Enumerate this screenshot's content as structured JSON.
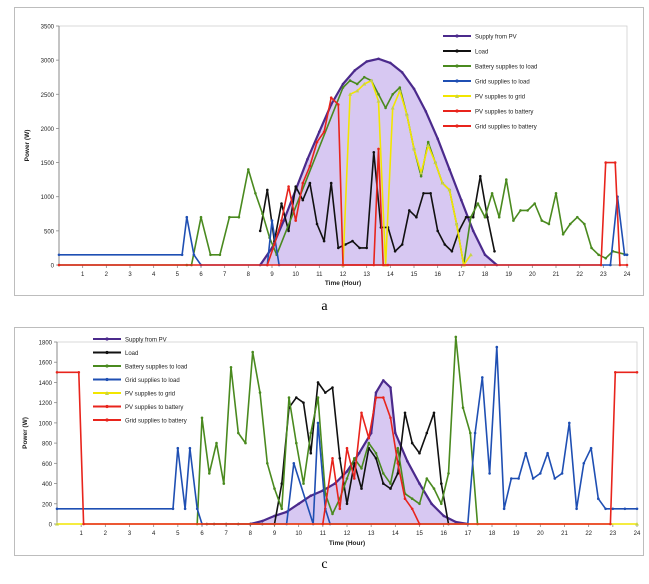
{
  "captions": {
    "a": "a",
    "c": "c"
  },
  "colors": {
    "pv": "#4b2a8c",
    "pv_fill": "#c9b6ee",
    "load": "#111111",
    "battery_to_load": "#4a8a1f",
    "grid_to_load": "#1f4fb3",
    "pv_to_grid": "#f2e600",
    "pv_to_battery": "#e8241c",
    "grid_to_battery": "#e8241c"
  },
  "chart_data": [
    {
      "type": "line",
      "xlabel": "Time (Hour)",
      "ylabel": "Power (W)",
      "ylim": [
        0,
        3500
      ],
      "yticks": [
        0,
        500,
        1000,
        1500,
        2000,
        2500,
        3000,
        3500
      ],
      "xlim": [
        0,
        24
      ],
      "xticks": [
        "1",
        "2",
        "3",
        "4",
        "5",
        "6",
        "7",
        "8",
        "9",
        "10",
        "11",
        "12",
        "13",
        "14",
        "15",
        "16",
        "17",
        "18",
        "19",
        "20",
        "21",
        "22",
        "23",
        "24"
      ],
      "legend_position": "top-right",
      "series": [
        {
          "name": "Supply from PV",
          "key": "pv",
          "fill": true,
          "x": [
            8.5,
            9,
            9.5,
            10,
            10.5,
            11,
            11.5,
            12,
            12.5,
            13,
            13.5,
            14,
            14.5,
            15,
            15.5,
            16,
            16.5,
            17,
            17.5,
            18,
            18.5
          ],
          "y": [
            0,
            250,
            650,
            1100,
            1550,
            1950,
            2350,
            2650,
            2850,
            2980,
            3020,
            2960,
            2820,
            2580,
            2250,
            1850,
            1400,
            950,
            500,
            150,
            0
          ]
        },
        {
          "name": "Load",
          "key": "load",
          "x": [
            8.5,
            8.8,
            9.1,
            9.4,
            9.7,
            10,
            10.3,
            10.6,
            10.9,
            11.2,
            11.5,
            11.8,
            12.1,
            12.4,
            12.7,
            13,
            13.3,
            13.6,
            13.9,
            14.2,
            14.5,
            14.8,
            15.1,
            15.4,
            15.7,
            16,
            16.3,
            16.6,
            16.9,
            17.2,
            17.5,
            17.8,
            18.1,
            18.4
          ],
          "y": [
            500,
            1100,
            350,
            900,
            500,
            1150,
            950,
            1200,
            600,
            350,
            1200,
            250,
            300,
            350,
            250,
            250,
            1650,
            550,
            550,
            200,
            300,
            800,
            700,
            1050,
            1050,
            500,
            300,
            200,
            500,
            700,
            700,
            1300,
            700,
            200
          ]
        },
        {
          "name": "Battery supplies to load",
          "key": "battery_to_load",
          "x": [
            0,
            5.4,
            5.6,
            6,
            6.4,
            6.8,
            7.2,
            7.6,
            8,
            8.3,
            8.6,
            8.9,
            9.2,
            12,
            12.3,
            12.6,
            12.9,
            13.2,
            13.5,
            13.8,
            14.1,
            14.4,
            14.7,
            15,
            15.3,
            15.6,
            15.9,
            16.2,
            16.5,
            16.8,
            17.1,
            17.4,
            17.7,
            18,
            18.3,
            18.6,
            18.9,
            19.2,
            19.5,
            19.8,
            20.1,
            20.4,
            20.7,
            21,
            21.3,
            21.6,
            21.9,
            22.2,
            22.5,
            22.8,
            23.1,
            23.4,
            24
          ],
          "y": [
            0,
            0,
            0,
            700,
            150,
            150,
            700,
            700,
            1400,
            1050,
            750,
            400,
            150,
            2600,
            2700,
            2650,
            2750,
            2700,
            2500,
            2300,
            2500,
            2600,
            2200,
            1700,
            1300,
            1800,
            1500,
            1200,
            1100,
            600,
            0,
            700,
            900,
            700,
            1050,
            700,
            1250,
            650,
            800,
            800,
            900,
            650,
            600,
            1050,
            450,
            600,
            700,
            600,
            250,
            150,
            100,
            200,
            150
          ]
        },
        {
          "name": "Grid supplies to load",
          "key": "grid_to_load",
          "x": [
            0,
            5.2,
            5.4,
            5.7,
            6,
            8.8,
            9,
            9.3,
            23.3,
            23.6,
            23.9,
            24
          ],
          "y": [
            150,
            150,
            700,
            150,
            0,
            0,
            650,
            0,
            0,
            1000,
            150,
            150
          ]
        },
        {
          "name": "PV supplies to grid",
          "key": "pv_to_grid",
          "x": [
            12,
            12.3,
            12.6,
            12.9,
            13.2,
            13.5,
            13.8,
            14.1,
            14.4,
            14.7,
            15,
            15.3,
            15.6,
            15.9,
            16.2,
            16.5,
            16.8,
            17.1,
            17.4
          ],
          "y": [
            0,
            2500,
            2550,
            2650,
            2700,
            2400,
            0,
            2300,
            2550,
            2200,
            1700,
            1350,
            1750,
            1500,
            1200,
            1100,
            600,
            0,
            150
          ]
        },
        {
          "name": "PV supplies to battery",
          "key": "pv_to_battery",
          "x": [
            8.8,
            9.1,
            9.4,
            9.7,
            10,
            10.3,
            10.6,
            10.9,
            11.2,
            11.5,
            11.8,
            12,
            13.3,
            13.5,
            13.7,
            13.9
          ],
          "y": [
            0,
            300,
            650,
            1150,
            650,
            1200,
            1450,
            1800,
            1950,
            2450,
            2350,
            0,
            0,
            1700,
            0,
            0
          ]
        },
        {
          "name": "Grid supplies to battery",
          "key": "grid_to_battery",
          "x": [
            0,
            22.9,
            23.1,
            23.5,
            23.7,
            24
          ],
          "y": [
            0,
            0,
            1500,
            1500,
            0,
            0
          ]
        }
      ]
    },
    {
      "type": "line",
      "xlabel": "Time (Hour)",
      "ylabel": "Power (W)",
      "ylim": [
        0,
        1800
      ],
      "yticks": [
        0,
        200,
        400,
        600,
        800,
        1000,
        1200,
        1400,
        1600,
        1800
      ],
      "xlim": [
        0,
        24
      ],
      "xticks": [
        "1",
        "2",
        "3",
        "4",
        "5",
        "6",
        "7",
        "8",
        "9",
        "10",
        "11",
        "12",
        "13",
        "14",
        "15",
        "16",
        "17",
        "18",
        "19",
        "20",
        "21",
        "22",
        "23",
        "24"
      ],
      "legend_position": "top-left",
      "series": [
        {
          "name": "Supply from PV",
          "key": "pv",
          "fill": true,
          "x": [
            8,
            8.5,
            9,
            9.5,
            10,
            10.5,
            11,
            11.5,
            12,
            12.5,
            13,
            13.2,
            13.5,
            13.8,
            14,
            14.5,
            15,
            15.5,
            16,
            16.5,
            17
          ],
          "y": [
            0,
            30,
            80,
            120,
            200,
            280,
            330,
            400,
            520,
            700,
            900,
            1300,
            1420,
            1350,
            900,
            620,
            400,
            200,
            80,
            20,
            0
          ]
        },
        {
          "name": "Load",
          "key": "load",
          "x": [
            6.2,
            6.5,
            7,
            7.5,
            8,
            8.5,
            9,
            9.3,
            9.6,
            9.9,
            10.2,
            10.5,
            10.8,
            11.1,
            11.4,
            11.7,
            12,
            12.3,
            12.6,
            12.9,
            13.2,
            13.5,
            13.8,
            14.1,
            14.4,
            14.7,
            15,
            15.3,
            15.6,
            15.9,
            16.2
          ],
          "y": [
            0,
            0,
            0,
            0,
            0,
            0,
            0,
            400,
            1150,
            1250,
            1200,
            700,
            1400,
            1300,
            1350,
            650,
            200,
            600,
            350,
            750,
            650,
            400,
            350,
            500,
            1100,
            800,
            700,
            900,
            1100,
            400,
            0
          ]
        },
        {
          "name": "Battery supplies to load",
          "key": "battery_to_load",
          "x": [
            5.8,
            6,
            6.3,
            6.6,
            6.9,
            7.2,
            7.5,
            7.8,
            8.1,
            8.4,
            8.7,
            9,
            9.3,
            9.6,
            9.9,
            10.2,
            10.5,
            10.8,
            11.1,
            11.4,
            11.7,
            12,
            12.3,
            12.6,
            12.9,
            13.2,
            13.5,
            13.8,
            14.1,
            14.4,
            14.7,
            15,
            15.3,
            15.6,
            15.9,
            16.2,
            16.5,
            16.8,
            17.1,
            17.4
          ],
          "y": [
            0,
            1050,
            500,
            800,
            400,
            1550,
            900,
            800,
            1700,
            1300,
            600,
            350,
            150,
            1250,
            800,
            400,
            900,
            1250,
            300,
            100,
            250,
            450,
            650,
            550,
            800,
            700,
            500,
            400,
            750,
            300,
            250,
            200,
            450,
            350,
            200,
            500,
            1850,
            1150,
            900,
            0
          ]
        },
        {
          "name": "Grid supplies to load",
          "key": "grid_to_load",
          "x": [
            0,
            4.8,
            5,
            5.3,
            5.5,
            5.8,
            6,
            9.5,
            9.8,
            10.6,
            10.8,
            11.1,
            11.3,
            17,
            17.3,
            17.6,
            17.9,
            18.2,
            18.5,
            18.8,
            19.1,
            19.4,
            19.7,
            20,
            20.3,
            20.6,
            20.9,
            21.2,
            21.5,
            21.8,
            22.1,
            22.4,
            22.7,
            23,
            23.5,
            24
          ],
          "y": [
            150,
            150,
            750,
            150,
            750,
            150,
            0,
            0,
            600,
            0,
            1000,
            150,
            0,
            0,
            900,
            1450,
            500,
            1750,
            150,
            450,
            450,
            700,
            450,
            500,
            700,
            450,
            500,
            1000,
            150,
            600,
            750,
            250,
            150,
            150,
            150,
            150
          ]
        },
        {
          "name": "PV supplies to grid",
          "key": "pv_to_grid",
          "x": [
            0,
            24
          ],
          "y": [
            0,
            0
          ]
        },
        {
          "name": "PV supplies to battery",
          "key": "pv_to_battery",
          "x": [
            11,
            11.4,
            11.7,
            12,
            12.3,
            12.6,
            12.9,
            13.2,
            13.5,
            13.8,
            14.1,
            14.4,
            14.7,
            15
          ],
          "y": [
            0,
            650,
            150,
            750,
            450,
            1100,
            850,
            1250,
            1250,
            1050,
            600,
            250,
            150,
            0
          ]
        },
        {
          "name": "Grid supplies to battery",
          "key": "grid_to_battery",
          "x": [
            0,
            0.9,
            1.1,
            22.9,
            23.1,
            24
          ],
          "y": [
            1500,
            1500,
            0,
            0,
            1500,
            1500
          ]
        }
      ]
    }
  ]
}
